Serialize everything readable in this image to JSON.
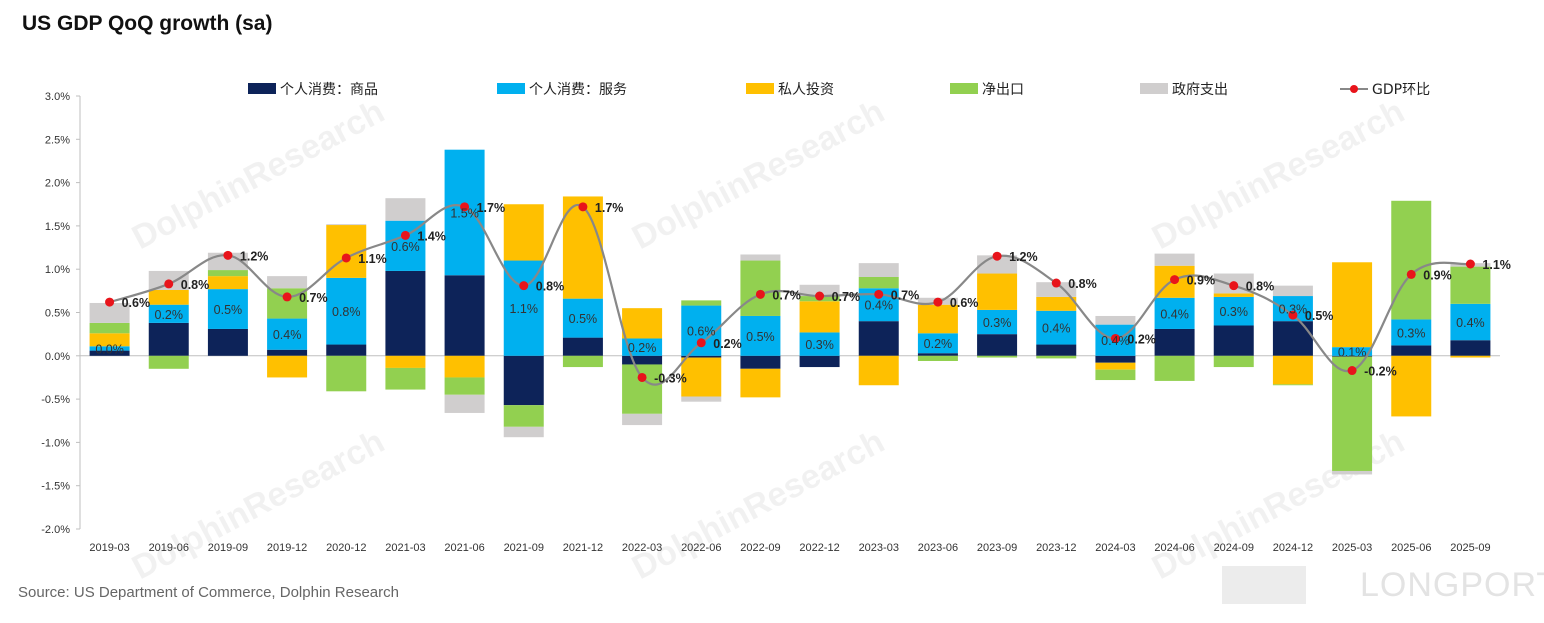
{
  "title": "US GDP QoQ growth (sa)",
  "source": "Source: US Department of Commerce, Dolphin Research",
  "watermark_text": "DolphinResearch",
  "brand_text": "LONGPORT",
  "chart_data": {
    "type": "bar",
    "stacked": true,
    "categories": [
      "2019-03",
      "2019-06",
      "2019-09",
      "2019-12",
      "2020-12",
      "2021-03",
      "2021-06",
      "2021-09",
      "2021-12",
      "2022-03",
      "2022-06",
      "2022-09",
      "2022-12",
      "2023-03",
      "2023-06",
      "2023-09",
      "2023-12",
      "2024-03",
      "2024-06",
      "2024-09",
      "2024-12",
      "2025-03",
      "2025-06",
      "2025-09"
    ],
    "ylim": [
      -2.0,
      3.0
    ],
    "yticks": [
      "-2.0%",
      "-1.5%",
      "-1.0%",
      "-0.5%",
      "0.0%",
      "0.5%",
      "1.0%",
      "1.5%",
      "2.0%",
      "2.5%",
      "3.0%"
    ],
    "series": [
      {
        "name": "个人消费：商品",
        "color": "#0d2359",
        "values": [
          0.06,
          0.38,
          0.31,
          0.07,
          0.13,
          0.98,
          0.93,
          -0.57,
          0.21,
          -0.1,
          -0.02,
          -0.15,
          -0.13,
          0.4,
          0.03,
          0.25,
          0.13,
          -0.08,
          0.31,
          0.35,
          0.4,
          -0.01,
          0.12,
          0.18
        ]
      },
      {
        "name": "个人消费：服务",
        "color": "#00b0ef",
        "values": [
          0.05,
          0.21,
          0.46,
          0.36,
          0.77,
          0.58,
          1.45,
          1.1,
          0.45,
          0.2,
          0.58,
          0.46,
          0.27,
          0.38,
          0.23,
          0.28,
          0.39,
          0.36,
          0.36,
          0.33,
          0.29,
          0.1,
          0.3,
          0.42
        ]
      },
      {
        "name": "私人投资",
        "color": "#ffc000",
        "values": [
          0.15,
          0.17,
          0.15,
          -0.25,
          0.61,
          -0.14,
          -0.25,
          0.65,
          1.18,
          0.35,
          -0.45,
          -0.33,
          0.36,
          -0.34,
          0.33,
          0.42,
          0.16,
          -0.08,
          0.37,
          0.04,
          -0.33,
          0.98,
          -0.7,
          -0.02
        ]
      },
      {
        "name": "净出口",
        "color": "#92d050",
        "values": [
          0.12,
          -0.15,
          0.07,
          0.35,
          -0.41,
          -0.25,
          -0.2,
          -0.25,
          -0.13,
          -0.57,
          0.06,
          0.64,
          0.06,
          0.13,
          -0.06,
          -0.02,
          -0.03,
          -0.12,
          -0.29,
          -0.13,
          -0.01,
          -1.32,
          1.37,
          0.43
        ]
      },
      {
        "name": "政府支出",
        "color": "#d0cece",
        "values": [
          0.23,
          0.22,
          0.2,
          0.14,
          0.01,
          0.26,
          -0.21,
          -0.12,
          0.0,
          -0.13,
          -0.06,
          0.07,
          0.13,
          0.16,
          0.08,
          0.21,
          0.17,
          0.1,
          0.14,
          0.23,
          0.12,
          -0.04,
          0.0,
          0.04
        ]
      }
    ],
    "series_labels": {
      "个人消费：服务": [
        "0.0%",
        "0.2%",
        "0.5%",
        "0.4%",
        "0.8%",
        "0.6%",
        "1.5%",
        "1.1%",
        "0.5%",
        "0.2%",
        "0.6%",
        "0.5%",
        "0.3%",
        "0.4%",
        "0.2%",
        "0.3%",
        "0.4%",
        "0.4%",
        "0.4%",
        "0.3%",
        "0.3%",
        "0.1%",
        "0.3%",
        "0.4%"
      ]
    },
    "line": {
      "name": "GDP环比",
      "color": "#888888",
      "marker_color": "#e8141b",
      "values": [
        0.62,
        0.83,
        1.16,
        0.68,
        1.13,
        1.39,
        1.72,
        0.81,
        1.72,
        -0.25,
        0.15,
        0.71,
        0.69,
        0.71,
        0.62,
        1.15,
        0.84,
        0.2,
        0.88,
        0.81,
        0.47,
        -0.17,
        0.94,
        1.06
      ],
      "labels": [
        "0.6%",
        "0.8%",
        "1.2%",
        "0.7%",
        "1.1%",
        "1.4%",
        "1.7%",
        "0.8%",
        "1.7%",
        "-0.3%",
        "0.2%",
        "0.7%",
        "0.7%",
        "0.7%",
        "0.6%",
        "1.2%",
        "0.8%",
        "0.2%",
        "0.9%",
        "0.8%",
        "0.5%",
        "-0.2%",
        "0.9%",
        "1.1%"
      ]
    },
    "legend": {
      "position": "top",
      "items": [
        "个人消费：商品",
        "个人消费：服务",
        "私人投资",
        "净出口",
        "政府支出",
        "GDP环比"
      ]
    },
    "grid": false
  }
}
